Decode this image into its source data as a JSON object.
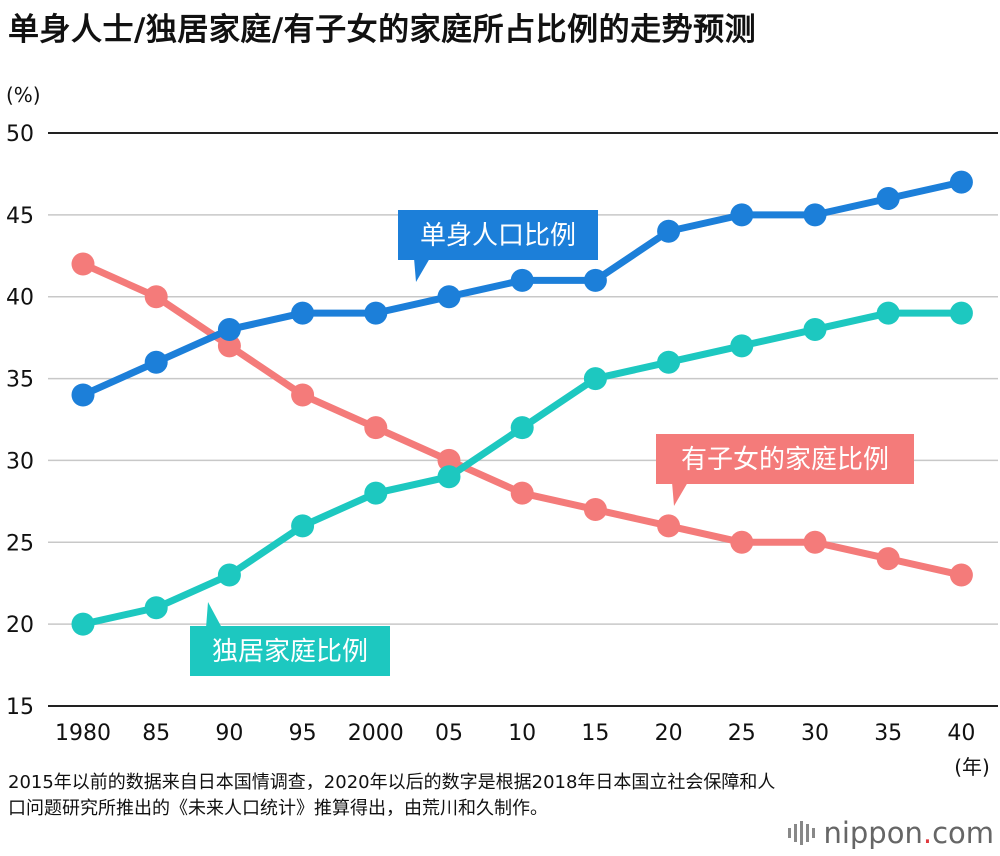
{
  "title": "单身人士/独居家庭/有子女的家庭所占比例的走势预测",
  "chart_data": {
    "type": "line",
    "unit_label": "(%)",
    "xunit_label": "(年)",
    "categories": [
      "1980",
      "85",
      "90",
      "95",
      "2000",
      "05",
      "10",
      "15",
      "20",
      "25",
      "30",
      "35",
      "40"
    ],
    "yticks": [
      50,
      45,
      40,
      35,
      30,
      25,
      20,
      15
    ],
    "ylim": [
      15,
      50
    ],
    "grid": true,
    "series": [
      {
        "name": "单身人口比例",
        "color": "#1c7fd9",
        "values": [
          34,
          36,
          38,
          39,
          39,
          40,
          41,
          41,
          44,
          45,
          45,
          46,
          47
        ]
      },
      {
        "name": "有子女的家庭比例",
        "color": "#f47b7a",
        "values": [
          42,
          40,
          37,
          34,
          32,
          30,
          28,
          27,
          26,
          25,
          25,
          24,
          23
        ]
      },
      {
        "name": "独居家庭比例",
        "color": "#1dc8c0",
        "values": [
          20,
          21,
          23,
          26,
          28,
          29,
          32,
          35,
          36,
          37,
          38,
          39,
          39
        ]
      }
    ]
  },
  "note": "2015年以前的数据来自日本国情调查，2020年以后的数字是根据2018年日本国立社会保障和人口问题研究所推出的《未来人口统计》推算得出，由荒川和久制作。",
  "logo": {
    "text": "nippon",
    "dot": ".",
    "suffix": "com"
  }
}
